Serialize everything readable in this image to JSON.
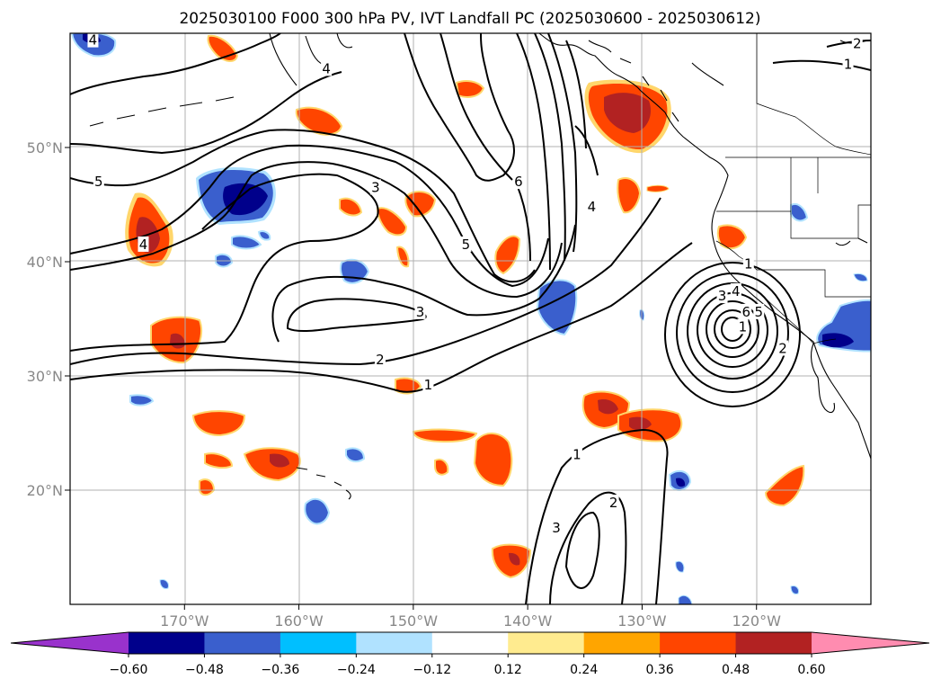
{
  "chart_data": {
    "type": "contour-map",
    "title": "2025030100 F000 300 hPa PV, IVT Landfall PC (2025030600 - 2025030612)",
    "lon_range": [
      -180,
      -110
    ],
    "lat_range": [
      10,
      60
    ],
    "x_ticks": [
      {
        "value": -170,
        "label": "170°W"
      },
      {
        "value": -160,
        "label": "160°W"
      },
      {
        "value": -150,
        "label": "150°W"
      },
      {
        "value": -140,
        "label": "140°W"
      },
      {
        "value": -130,
        "label": "130°W"
      },
      {
        "value": -120,
        "label": "120°W"
      }
    ],
    "y_ticks": [
      {
        "value": 20,
        "label": "20°N"
      },
      {
        "value": 30,
        "label": "30°N"
      },
      {
        "value": 40,
        "label": "40°N"
      },
      {
        "value": 50,
        "label": "50°N"
      }
    ],
    "grid": true,
    "colorbar": {
      "orientation": "horizontal",
      "extend": "both",
      "levels": [
        -0.6,
        -0.48,
        -0.36,
        -0.24,
        -0.12,
        0.12,
        0.24,
        0.36,
        0.48,
        0.6
      ],
      "tick_labels": [
        "−0.60",
        "−0.48",
        "−0.36",
        "−0.24",
        "−0.12",
        "0.12",
        "0.24",
        "0.36",
        "0.48",
        "0.60"
      ],
      "colors": [
        "#9932cc",
        "#00008b",
        "#3a5fcd",
        "#00bfff",
        "#b0e2ff",
        "#ffffff",
        "#ffeb8f",
        "#ffa500",
        "#ff4500",
        "#b22222",
        "#ff8cb0"
      ]
    },
    "contour_labels": [
      {
        "label": "1",
        "lon": -148.7,
        "lat": 29.2
      },
      {
        "label": "2",
        "lon": -152.9,
        "lat": 31.4
      },
      {
        "label": "3",
        "lon": -149.4,
        "lat": 35.6
      },
      {
        "label": "3",
        "lon": -153.3,
        "lat": 46.5
      },
      {
        "label": "4",
        "lon": -157.6,
        "lat": 56.9
      },
      {
        "label": "4",
        "lon": -173.6,
        "lat": 41.5
      },
      {
        "label": "4",
        "lon": -178.0,
        "lat": 59.4
      },
      {
        "label": "5",
        "lon": -177.5,
        "lat": 47.0
      },
      {
        "label": "5",
        "lon": -145.4,
        "lat": 41.5
      },
      {
        "label": "6",
        "lon": -140.8,
        "lat": 47.0
      },
      {
        "label": "4",
        "lon": -134.4,
        "lat": 44.8
      },
      {
        "label": "1",
        "lon": -120.7,
        "lat": 39.8
      },
      {
        "label": "3",
        "lon": -123.0,
        "lat": 37.0
      },
      {
        "label": "4",
        "lon": -121.8,
        "lat": 37.4
      },
      {
        "label": "6",
        "lon": -120.9,
        "lat": 35.6
      },
      {
        "label": "5",
        "lon": -119.8,
        "lat": 35.6
      },
      {
        "label": "2",
        "lon": -117.7,
        "lat": 32.4
      },
      {
        "label": "1",
        "lon": -121.2,
        "lat": 34.3
      },
      {
        "label": "1",
        "lon": -135.7,
        "lat": 23.1
      },
      {
        "label": "2",
        "lon": -132.5,
        "lat": 18.9
      },
      {
        "label": "3",
        "lon": -137.5,
        "lat": 16.7
      },
      {
        "label": "1",
        "lon": -112.0,
        "lat": 57.3
      },
      {
        "label": "2",
        "lon": -111.2,
        "lat": 59.1
      }
    ]
  }
}
